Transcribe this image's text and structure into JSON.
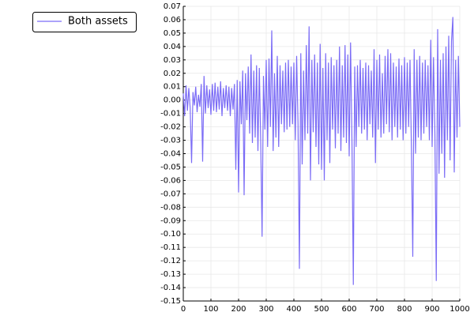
{
  "chart_data": {
    "type": "line",
    "legend": "outer-top-left",
    "grid": true,
    "xlim": [
      0,
      1000
    ],
    "ylim": [
      -0.15,
      0.07
    ],
    "xticks": [
      0,
      100,
      200,
      300,
      400,
      500,
      600,
      700,
      800,
      900,
      1000
    ],
    "yticks": [
      0.07,
      0.06,
      0.05,
      0.04,
      0.03,
      0.02,
      0.01,
      {
        "value": 0,
        "label": "0.00"
      },
      -0.01,
      -0.02,
      -0.03,
      -0.04,
      -0.05,
      -0.06,
      -0.07,
      -0.08,
      -0.09,
      {
        "value": -0.1,
        "label": "-0.10"
      },
      -0.11,
      -0.12,
      -0.13,
      -0.14,
      -0.15
    ],
    "x": [
      0,
      5,
      10,
      15,
      20,
      25,
      30,
      35,
      40,
      45,
      50,
      55,
      60,
      65,
      70,
      75,
      80,
      85,
      90,
      95,
      100,
      105,
      110,
      115,
      120,
      125,
      130,
      135,
      140,
      145,
      150,
      155,
      160,
      165,
      170,
      175,
      180,
      185,
      190,
      195,
      200,
      205,
      210,
      215,
      220,
      225,
      230,
      235,
      240,
      245,
      250,
      255,
      260,
      265,
      270,
      275,
      280,
      285,
      290,
      295,
      300,
      305,
      310,
      315,
      320,
      325,
      330,
      335,
      340,
      345,
      350,
      355,
      360,
      365,
      370,
      375,
      380,
      385,
      390,
      395,
      400,
      405,
      410,
      415,
      420,
      425,
      430,
      435,
      440,
      445,
      450,
      455,
      460,
      465,
      470,
      475,
      480,
      485,
      490,
      495,
      500,
      505,
      510,
      515,
      520,
      525,
      530,
      535,
      540,
      545,
      550,
      555,
      560,
      565,
      570,
      575,
      580,
      585,
      590,
      595,
      600,
      605,
      610,
      615,
      620,
      625,
      630,
      635,
      640,
      645,
      650,
      655,
      660,
      665,
      670,
      675,
      680,
      685,
      690,
      695,
      700,
      705,
      710,
      715,
      720,
      725,
      730,
      735,
      740,
      745,
      750,
      755,
      760,
      765,
      770,
      775,
      780,
      785,
      790,
      795,
      800,
      805,
      810,
      815,
      820,
      825,
      830,
      835,
      840,
      845,
      850,
      855,
      860,
      865,
      870,
      875,
      880,
      885,
      890,
      895,
      900,
      905,
      910,
      915,
      920,
      925,
      930,
      935,
      940,
      945,
      950,
      955,
      960,
      965,
      970,
      975,
      980,
      985,
      990,
      995,
      1000
    ],
    "series": [
      {
        "name": "Both assets",
        "color": "#7b6cf6",
        "values": [
          0.005,
          -0.012,
          0.011,
          -0.008,
          0.009,
          -0.006,
          -0.047,
          0.006,
          -0.004,
          0.01,
          -0.009,
          0.004,
          -0.005,
          0.012,
          -0.046,
          0.018,
          -0.01,
          0.011,
          -0.006,
          0.008,
          -0.011,
          0.012,
          -0.008,
          0.013,
          -0.009,
          0.01,
          -0.007,
          0.014,
          -0.012,
          0.009,
          -0.006,
          0.011,
          -0.008,
          0.01,
          -0.012,
          0.009,
          -0.007,
          0.012,
          -0.052,
          0.015,
          -0.069,
          0.014,
          -0.018,
          0.022,
          -0.071,
          0.02,
          -0.015,
          0.025,
          -0.025,
          0.034,
          -0.032,
          0.022,
          -0.028,
          0.026,
          -0.038,
          0.024,
          -0.03,
          -0.102,
          0.018,
          -0.022,
          0.03,
          -0.035,
          0.031,
          -0.02,
          0.052,
          -0.038,
          0.02,
          -0.028,
          0.033,
          -0.035,
          0.026,
          -0.018,
          0.022,
          -0.024,
          0.028,
          -0.022,
          0.03,
          -0.02,
          0.025,
          -0.018,
          0.028,
          -0.03,
          0.033,
          -0.018,
          -0.126,
          0.035,
          -0.048,
          0.022,
          -0.03,
          0.041,
          -0.025,
          0.055,
          -0.06,
          0.03,
          -0.024,
          0.034,
          -0.035,
          0.028,
          -0.048,
          0.042,
          -0.052,
          0.024,
          -0.06,
          0.035,
          -0.03,
          0.028,
          -0.047,
          0.032,
          -0.022,
          0.026,
          -0.036,
          0.03,
          -0.025,
          0.04,
          -0.038,
          0.026,
          -0.028,
          0.041,
          -0.032,
          0.034,
          -0.042,
          0.043,
          -0.03,
          -0.138,
          0.025,
          -0.035,
          0.026,
          -0.02,
          0.03,
          -0.025,
          0.024,
          -0.022,
          0.028,
          -0.03,
          0.026,
          -0.018,
          0.022,
          -0.028,
          0.038,
          -0.047,
          0.03,
          -0.022,
          0.034,
          -0.028,
          0.02,
          -0.025,
          0.033,
          -0.018,
          0.038,
          -0.024,
          0.035,
          -0.03,
          0.028,
          -0.02,
          0.025,
          -0.028,
          0.031,
          -0.022,
          0.026,
          -0.03,
          0.032,
          -0.025,
          0.028,
          -0.02,
          0.03,
          -0.035,
          -0.117,
          0.038,
          -0.04,
          0.03,
          -0.028,
          0.033,
          -0.03,
          0.028,
          -0.025,
          0.03,
          -0.02,
          0.026,
          -0.03,
          0.045,
          -0.035,
          0.032,
          -0.025,
          -0.135,
          0.053,
          -0.055,
          0.03,
          -0.04,
          0.035,
          -0.058,
          0.04,
          -0.03,
          0.048,
          -0.045,
          0.044,
          0.062,
          -0.054,
          0.03,
          -0.028,
          0.033,
          -0.02
        ]
      }
    ]
  }
}
